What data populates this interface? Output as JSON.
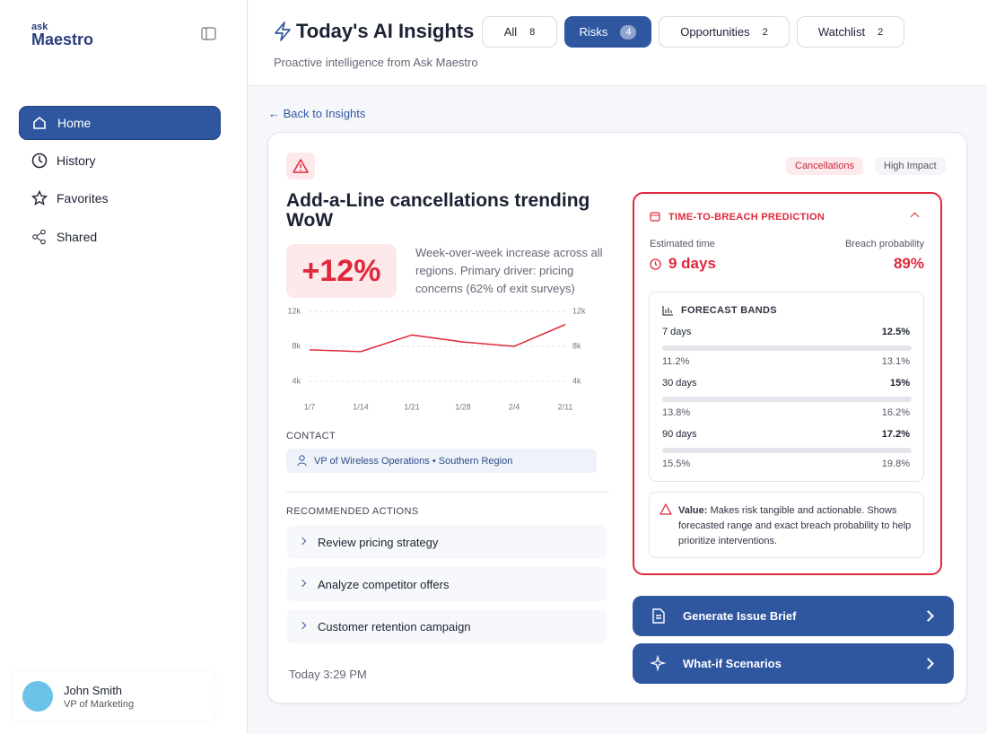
{
  "sidebar": {
    "logo_small": "ask",
    "logo": "Maestro",
    "nav": [
      "Home",
      "History",
      "Favorites",
      "Shared"
    ],
    "user": {
      "name": "John Smith",
      "role": "VP of Marketing"
    }
  },
  "header": {
    "title": "Today's AI Insights",
    "subtitle": "Proactive intelligence from Ask Maestro",
    "tabs": [
      {
        "label": "All",
        "count": 8
      },
      {
        "label": "Risks",
        "count": 4
      },
      {
        "label": "Opportunities",
        "count": 2
      },
      {
        "label": "Watchlist",
        "count": 2
      }
    ]
  },
  "back": "Back to Insights",
  "card": {
    "tags": [
      "Cancellations",
      "High Impact"
    ],
    "title": "Add-a-Line cancellations trending WoW",
    "change": "+12%",
    "description": "Week-over-week increase across all regions. Primary driver: pricing concerns (62% of exit surveys)",
    "contact_label": "CONTACT",
    "contact": "VP of Wireless Operations • Southern Region",
    "actions_label": "RECOMMENDED ACTIONS",
    "actions": [
      "Review pricing strategy",
      "Analyze competitor offers",
      "Customer retention campaign"
    ],
    "timestamp": "Today 3:29 PM"
  },
  "chart_data": {
    "type": "line",
    "categories": [
      "1/7",
      "1/14",
      "1/21",
      "1/28",
      "2/4",
      "2/11"
    ],
    "series": [
      {
        "name": null,
        "color": "#e0283c",
        "values": [
          7.6,
          7.4,
          9.3,
          8.5,
          8.0,
          10.5
        ]
      }
    ],
    "ylim": [
      4,
      12
    ],
    "yticks": [
      {
        "value": 4,
        "label": "4k"
      },
      {
        "value": 8,
        "label": "8k"
      },
      {
        "value": 12,
        "label": "12k"
      }
    ],
    "grid": true
  },
  "prediction": {
    "title": "TIME-TO-BREACH PREDICTION",
    "est_label": "Estimated time",
    "est_value": "9 days",
    "prob_label": "Breach probability",
    "prob_value": "89%",
    "forecast_title": "FORECAST BANDS",
    "bands": [
      {
        "label": "7 days",
        "value": "12.5%",
        "low": "11.2%",
        "high": "13.1%"
      },
      {
        "label": "30 days",
        "value": "15%",
        "low": "13.8%",
        "high": "16.2%"
      },
      {
        "label": "90 days",
        "value": "17.2%",
        "low": "15.5%",
        "high": "19.8%"
      }
    ],
    "value_label": "Value:",
    "value_text": "Makes risk tangible and actionable. Shows forecasted range and exact breach probability to help prioritize interventions."
  },
  "buttons": [
    "Generate Issue Brief",
    "What-if Scenarios"
  ]
}
